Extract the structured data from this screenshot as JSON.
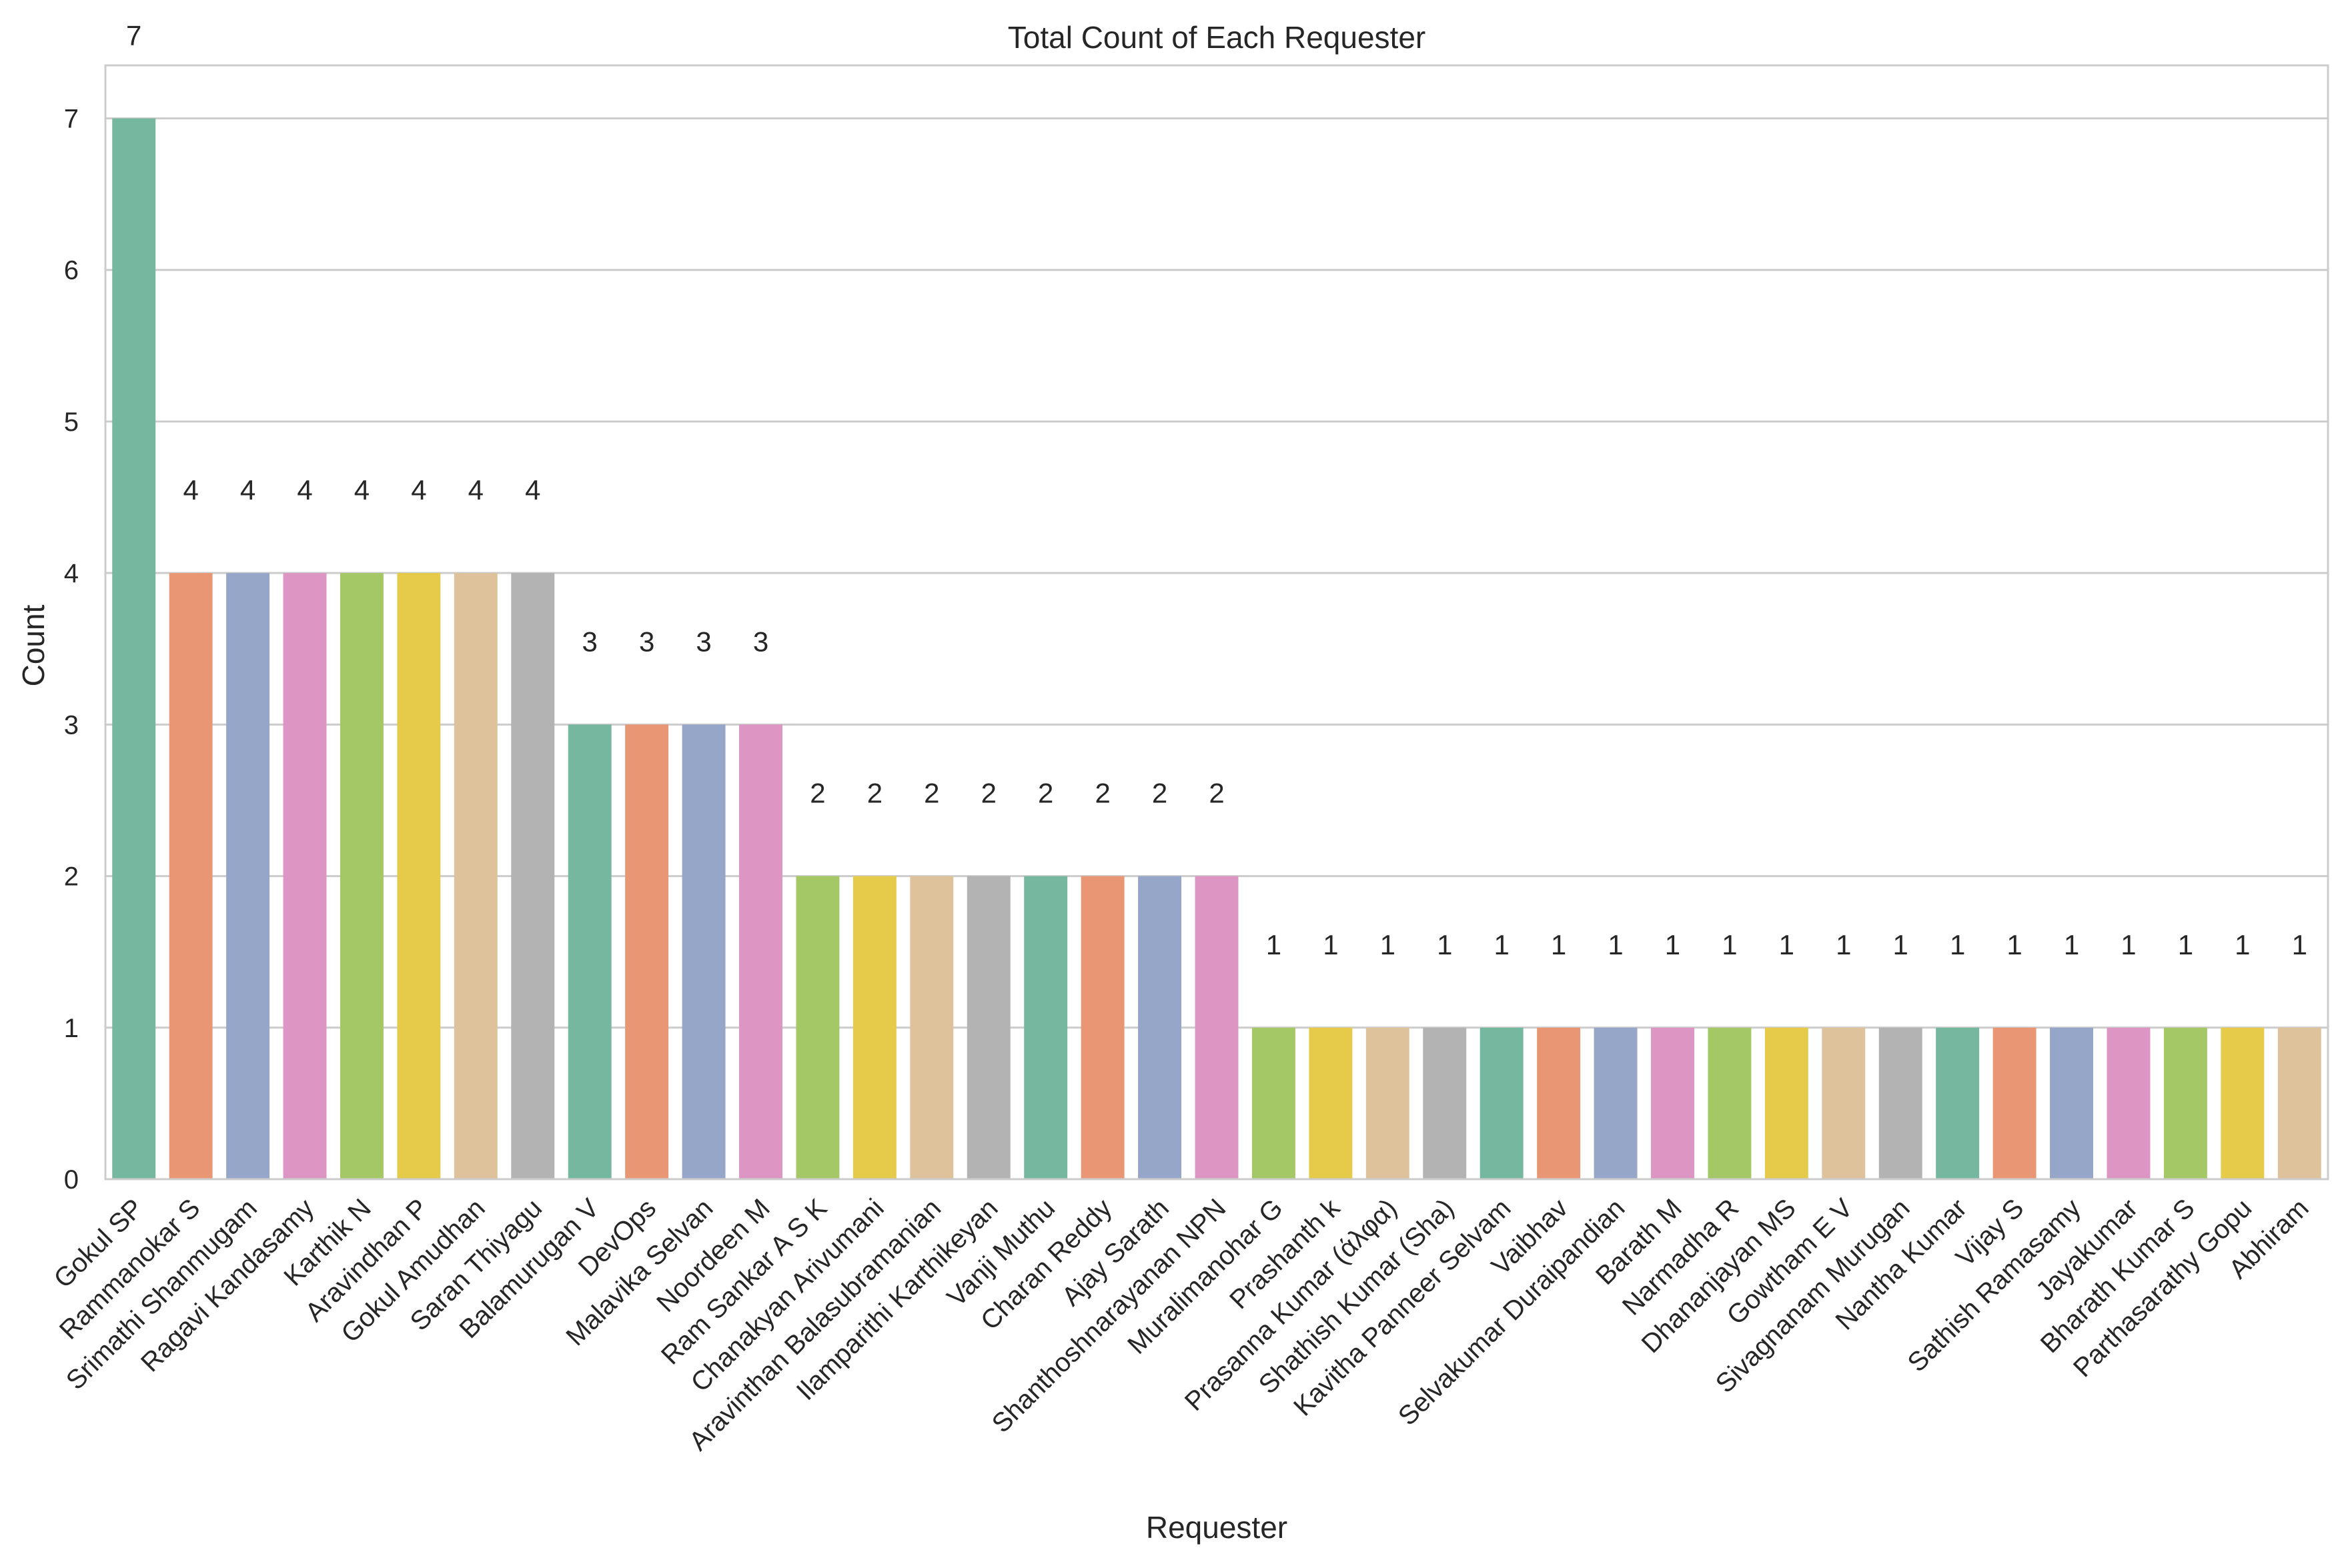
{
  "chart_data": {
    "type": "bar",
    "title": "Total Count of Each Requester",
    "xlabel": "Requester",
    "ylabel": "Count",
    "ylim": [
      0,
      7.35
    ],
    "yticks": [
      0,
      1,
      2,
      3,
      4,
      5,
      6,
      7
    ],
    "grid": true,
    "categories": [
      "Gokul SP",
      "Rammanokar S",
      "Srimathi Shanmugam",
      "Ragavi Kandasamy",
      "Karthik N",
      "Aravindhan P",
      "Gokul Amudhan",
      "Saran Thiyagu",
      "Balamurugan V",
      "DevOps",
      "Malavika Selvan",
      "Noordeen M",
      "Ram Sankar A S K",
      "Chanakyan Arivumani",
      "Aravinthan Balasubramanian",
      "Ilamparithi Karthikeyan",
      "Vanji Muthu",
      "Charan Reddy",
      "Ajay Sarath",
      "Shanthoshnarayanan NPN",
      "Muralimanohar G",
      "Prashanth k",
      "Prasanna Kumar (άλφα)",
      "Shathish Kumar (Sha)",
      "Kavitha Panneer Selvam",
      "Vaibhav",
      "Selvakumar Duraipandian",
      "Barath M",
      "Narmadha R",
      "Dhananjayan MS",
      "Gowtham E V",
      "Sivagnanam Murugan",
      "Nantha Kumar",
      "Vijay S",
      "Sathish Ramasamy",
      "Jayakumar",
      "Bharath Kumar S",
      "Parthasarathy Gopu",
      "Abhiram"
    ],
    "values": [
      7,
      4,
      4,
      4,
      4,
      4,
      4,
      4,
      3,
      3,
      3,
      3,
      2,
      2,
      2,
      2,
      2,
      2,
      2,
      2,
      1,
      1,
      1,
      1,
      1,
      1,
      1,
      1,
      1,
      1,
      1,
      1,
      1,
      1,
      1,
      1,
      1,
      1,
      1
    ],
    "palette": [
      "#76b7a0",
      "#e99675",
      "#96a6c8",
      "#dd96c3",
      "#a4c865",
      "#e5cb49",
      "#dec29b",
      "#b3b3b3"
    ],
    "colors": {
      "gridline": "#cccccc",
      "axis": "#cccccc",
      "text": "#262626"
    }
  }
}
